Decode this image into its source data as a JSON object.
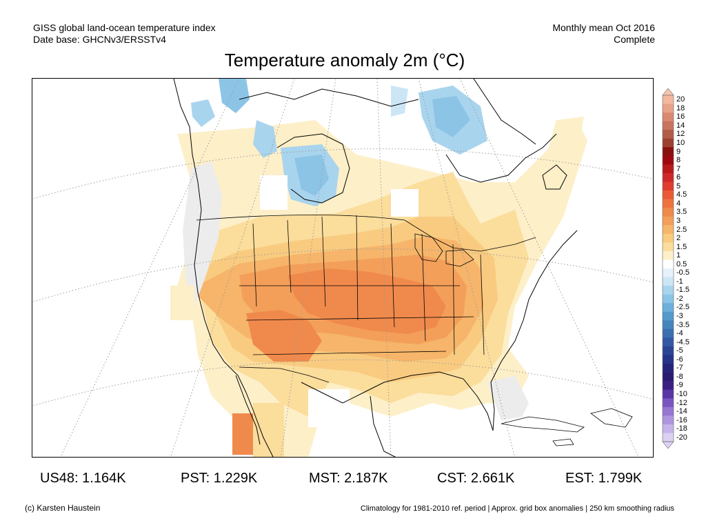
{
  "header": {
    "line1": "GISS global land-ocean temperature index",
    "line2": "Date base: GHCNv3/ERSSTv4",
    "period": "Monthly mean Oct 2016",
    "status": "Complete"
  },
  "title": "Temperature anomaly 2m (°C)",
  "colorbar": {
    "labels": [
      "20",
      "18",
      "16",
      "14",
      "12",
      "10",
      "9",
      "8",
      "7",
      "6",
      "5",
      "4.5",
      "4",
      "3.5",
      "3",
      "2.5",
      "2",
      "1.5",
      "1",
      "0.5",
      "-0.5",
      "-1",
      "-1.5",
      "-2",
      "-2.5",
      "-3",
      "-3.5",
      "-4",
      "-4.5",
      "-5",
      "-6",
      "-7",
      "-8",
      "-9",
      "-10",
      "-12",
      "-14",
      "-16",
      "-18",
      "-20"
    ],
    "colors": [
      "#f3b8a0",
      "#e8a389",
      "#d98a70",
      "#c77560",
      "#b25d48",
      "#9c4030",
      "#8a1010",
      "#a00810",
      "#b81a1a",
      "#d02828",
      "#e03d2e",
      "#ea5a36",
      "#ee7340",
      "#f08a4c",
      "#f39f5a",
      "#f6b56a",
      "#f9cb80",
      "#fbdd9c",
      "#fdefc8",
      "#ffffff",
      "#e6f2fb",
      "#cce6f6",
      "#a9d4ee",
      "#8cc4e6",
      "#6eb0dc",
      "#5598cc",
      "#4684bd",
      "#3b6fb0",
      "#3359a4",
      "#2b4595",
      "#253488",
      "#23247a",
      "#2a1a70",
      "#3b1e82",
      "#5a35a6",
      "#7a55c0",
      "#9676d2",
      "#ae95df",
      "#c5b3ea",
      "#dcd0f3"
    ],
    "top_color": "#f8c4ad",
    "bottom_color": "#ddd3f5"
  },
  "map_colors": {
    "land_outline": "#000000",
    "grid": "#9a9a9a",
    "no_data": "#ffffff",
    "light_gray": "#ececec"
  },
  "regions": [
    {
      "label": "US48: 1.164K"
    },
    {
      "label": "PST: 1.229K"
    },
    {
      "label": "MST: 2.187K"
    },
    {
      "label": "CST: 2.661K"
    },
    {
      "label": "EST: 1.799K"
    }
  ],
  "footer": {
    "credit": "(c) Karsten Haustein",
    "climatology": "Climatology for 1981-2010 ref. period | Approx. grid box anomalies | 250 km smoothing radius"
  }
}
